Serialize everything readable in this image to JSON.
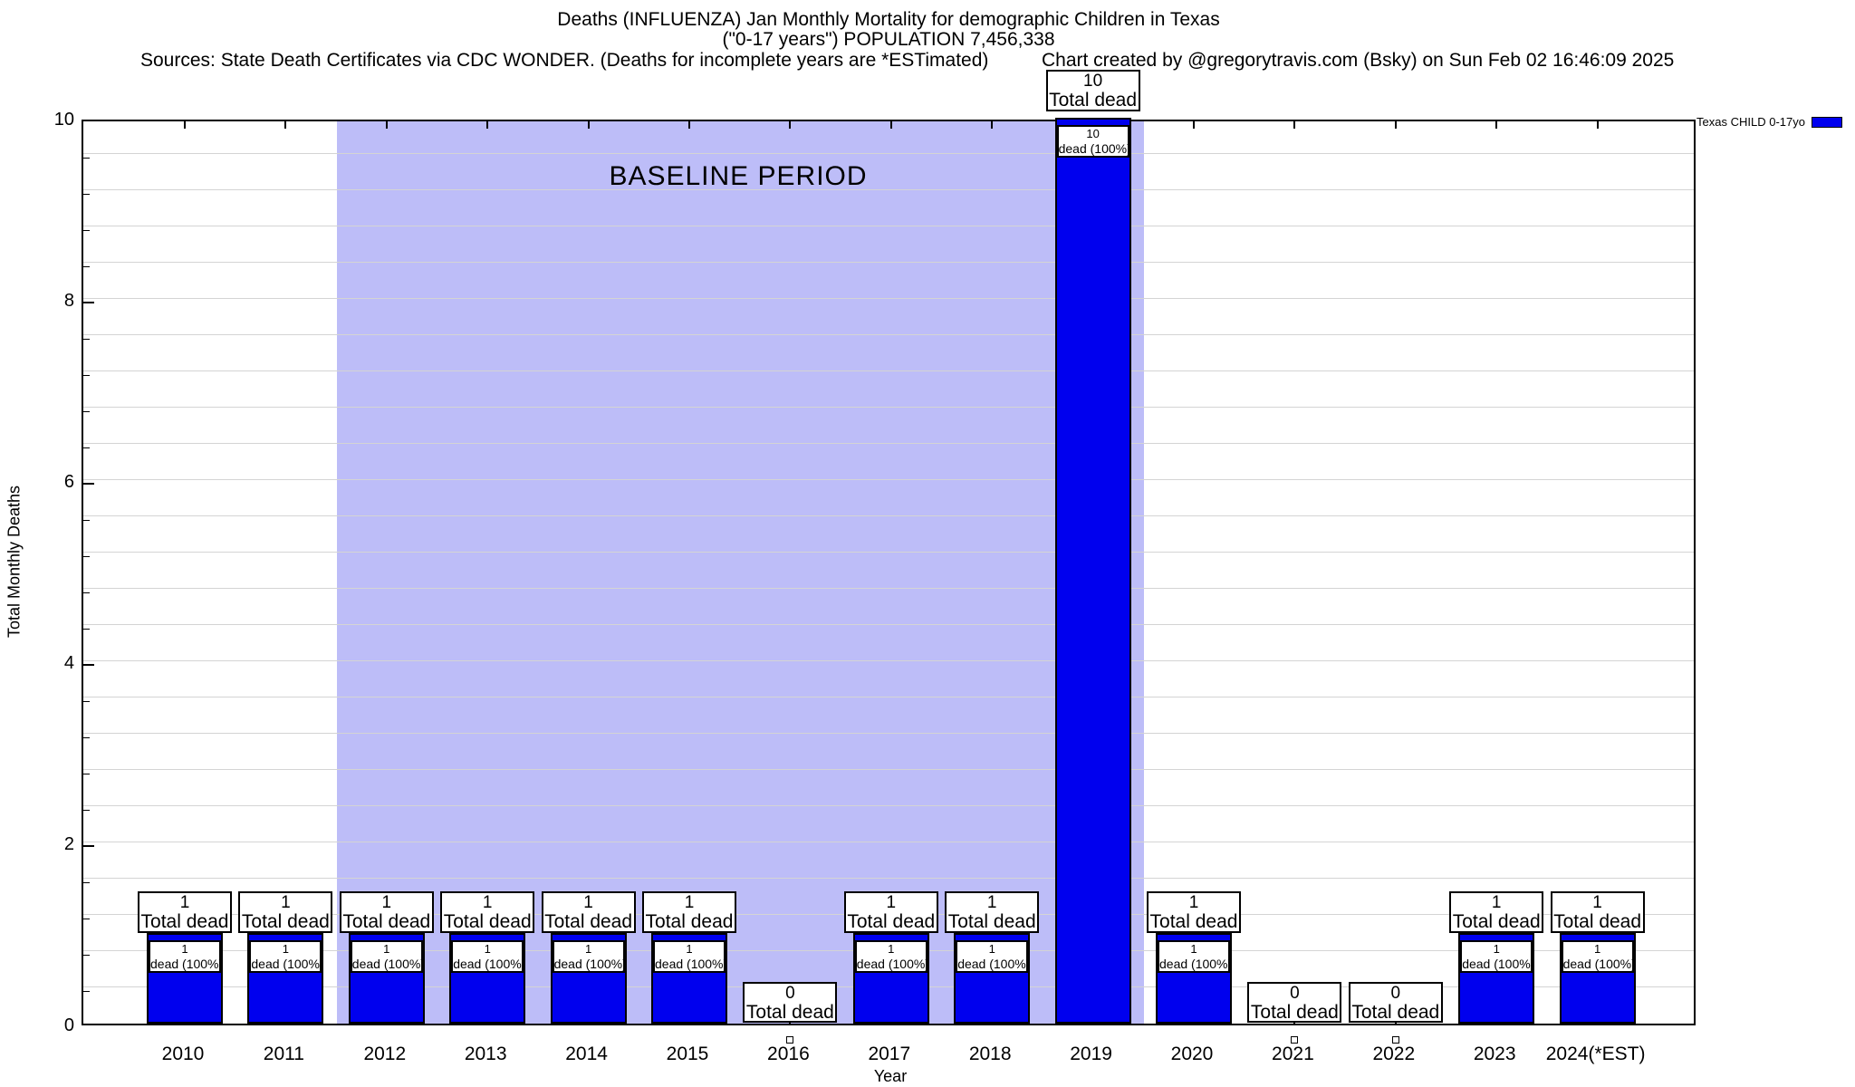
{
  "page": {
    "title_line1": "Deaths (INFLUENZA) Jan Monthly Mortality for demographic Children in Texas",
    "title_line2": "(\"0-17 years\") POPULATION 7,456,338",
    "sources": "Sources: State Death Certificates via CDC WONDER. (Deaths for incomplete years are *ESTimated)",
    "credit": "Chart created by @gregorytravis.com (Bsky) on Sun Feb 02 16:46:09 2025"
  },
  "chart_data": {
    "type": "bar",
    "title": "Deaths (INFLUENZA) Jan Monthly Mortality for demographic Children in Texas (\"0-17 years\") POPULATION 7,456,338",
    "xlabel": "Year",
    "ylabel": "Total Monthly Deaths",
    "ylim": [
      0,
      10
    ],
    "yticks": [
      0,
      2,
      4,
      6,
      8,
      10
    ],
    "minor_grid_step": 0.4,
    "grid": true,
    "categories": [
      "2010",
      "2011",
      "2012",
      "2013",
      "2014",
      "2015",
      "2016",
      "2017",
      "2018",
      "2019",
      "2020",
      "2021",
      "2022",
      "2023",
      "2024(*EST)"
    ],
    "series": [
      {
        "name": "Texas CHILD 0-17yo",
        "color": "#0000ee",
        "values": [
          1,
          1,
          1,
          1,
          1,
          1,
          0,
          1,
          1,
          10,
          1,
          0,
          0,
          1,
          1
        ]
      }
    ],
    "annotations": {
      "baseline_label": "BASELINE PERIOD",
      "baseline_region": {
        "from": "2012",
        "to": "2019",
        "color": "#bdbdf8"
      },
      "total_dead_label": "Total dead",
      "dead_pct_label": "dead (100%)"
    },
    "legend": {
      "position": "top-right",
      "entries": [
        {
          "label": "Texas CHILD 0-17yo",
          "color": "#0000ee"
        }
      ]
    }
  }
}
